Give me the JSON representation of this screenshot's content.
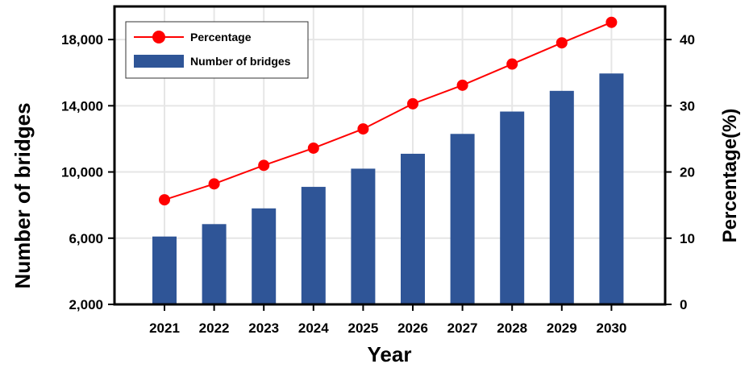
{
  "chart_data": {
    "type": "bar",
    "categories": [
      "2021",
      "2022",
      "2023",
      "2024",
      "2025",
      "2026",
      "2027",
      "2028",
      "2029",
      "2030"
    ],
    "series": [
      {
        "name": "Number of bridges",
        "type": "bar",
        "axis": "left",
        "color": "#2f5597",
        "values": [
          6100,
          6850,
          7800,
          9100,
          10200,
          11100,
          12300,
          13650,
          14900,
          15950
        ]
      },
      {
        "name": "Percentage",
        "type": "line",
        "axis": "right",
        "color": "#ff0000",
        "values": [
          15.8,
          18.2,
          21.0,
          23.6,
          26.5,
          30.3,
          33.1,
          36.3,
          39.5,
          42.6
        ]
      }
    ],
    "xlabel": "Year",
    "ylabel": "Number of bridges",
    "y2label": "Percentage(%)",
    "ylim": [
      2000,
      20000
    ],
    "y2lim": [
      0,
      45
    ],
    "yticks": [
      2000,
      6000,
      10000,
      14000,
      18000
    ],
    "ytick_labels": [
      "2,000",
      "6,000",
      "10,000",
      "14,000",
      "18,000"
    ],
    "y2ticks": [
      0,
      10,
      20,
      30,
      40
    ],
    "y2tick_labels": [
      "0",
      "10",
      "20",
      "30",
      "40"
    ],
    "grid": true,
    "legend": "top-left",
    "legend_entries": [
      "Percentage",
      "Number of bridges"
    ],
    "grid_color": "#e6e6e6"
  }
}
